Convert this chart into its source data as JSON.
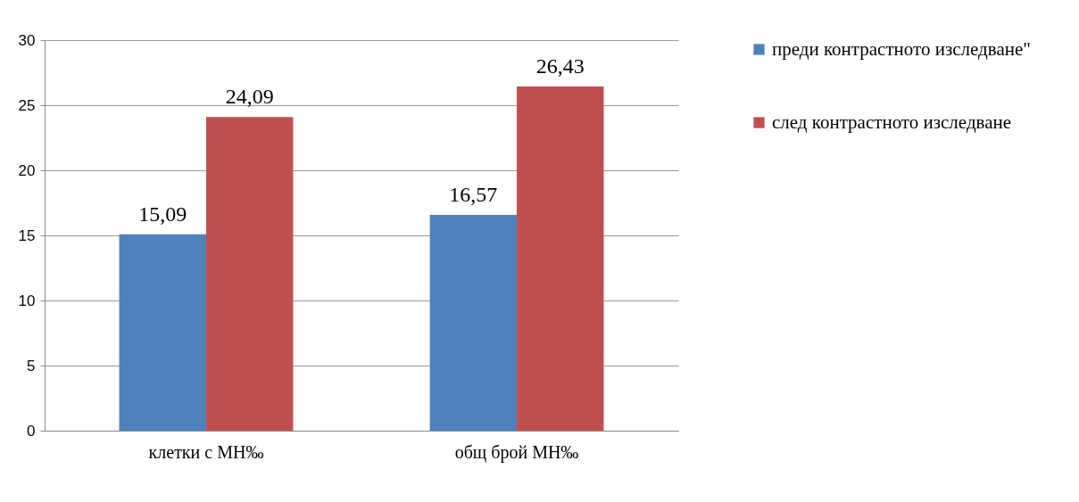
{
  "chart_data": {
    "type": "bar",
    "categories": [
      "клетки с МН‰",
      "общ брой МН‰"
    ],
    "series": [
      {
        "name": "преди контрастното изследване\"",
        "color": "#4f81bd",
        "values": [
          15.09,
          16.57
        ],
        "value_labels": [
          "15,09",
          "16,57"
        ]
      },
      {
        "name": "след контрастното изследване",
        "color": "#c0504d",
        "values": [
          24.09,
          26.43
        ],
        "value_labels": [
          "24,09",
          "26,43"
        ]
      }
    ],
    "ylim": [
      0,
      30
    ],
    "yticks": [
      0,
      5,
      10,
      15,
      20,
      25,
      30
    ],
    "grid": "y",
    "legend": "right"
  }
}
